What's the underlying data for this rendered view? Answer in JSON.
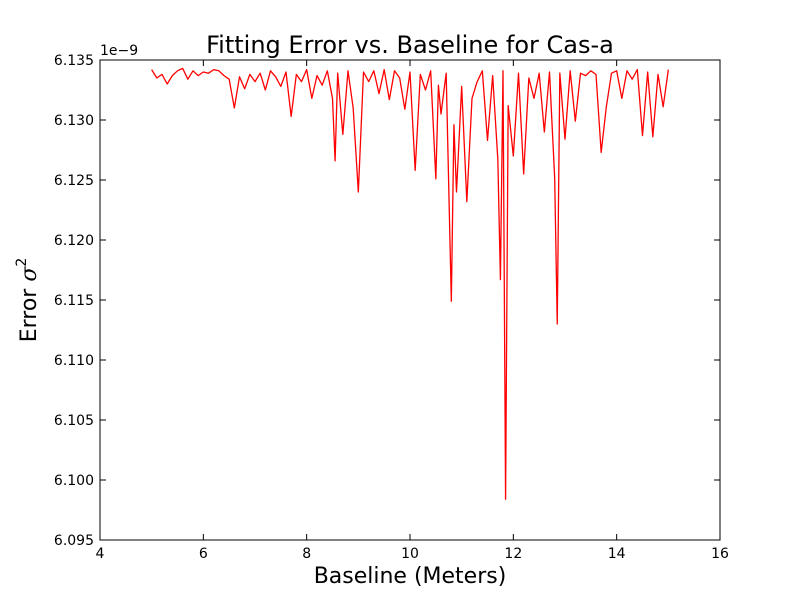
{
  "chart_data": {
    "type": "line",
    "title": "Fitting Error vs. Baseline for Cas-a",
    "xlabel": "Baseline (Meters)",
    "ylabel_base": "Error ",
    "ylabel_symbol": "σ",
    "ylabel_exponent": "2",
    "offset_text": "1e−9",
    "xlim": [
      4,
      16
    ],
    "ylim": [
      6.095,
      6.135
    ],
    "xticks": [
      4,
      6,
      8,
      10,
      12,
      14,
      16
    ],
    "xtick_labels": [
      "4",
      "6",
      "8",
      "10",
      "12",
      "14",
      "16"
    ],
    "yticks": [
      6.095,
      6.1,
      6.105,
      6.11,
      6.115,
      6.12,
      6.125,
      6.13,
      6.135
    ],
    "ytick_labels": [
      "6.095",
      "6.100",
      "6.105",
      "6.110",
      "6.115",
      "6.120",
      "6.125",
      "6.130",
      "6.135"
    ],
    "grid": false,
    "series": [
      {
        "color": "#ff0000",
        "x": [
          5.0,
          5.1,
          5.2,
          5.3,
          5.4,
          5.5,
          5.6,
          5.7,
          5.8,
          5.9,
          6.0,
          6.1,
          6.2,
          6.3,
          6.4,
          6.5,
          6.6,
          6.7,
          6.8,
          6.9,
          7.0,
          7.1,
          7.2,
          7.3,
          7.4,
          7.5,
          7.6,
          7.7,
          7.8,
          7.9,
          8.0,
          8.1,
          8.2,
          8.3,
          8.4,
          8.5,
          8.55,
          8.6,
          8.7,
          8.8,
          8.9,
          9.0,
          9.1,
          9.2,
          9.3,
          9.4,
          9.5,
          9.6,
          9.7,
          9.8,
          9.9,
          10.0,
          10.1,
          10.2,
          10.3,
          10.4,
          10.5,
          10.55,
          10.6,
          10.7,
          10.8,
          10.85,
          10.9,
          11.0,
          11.1,
          11.2,
          11.3,
          11.4,
          11.5,
          11.6,
          11.7,
          11.75,
          11.8,
          11.85,
          11.9,
          12.0,
          12.1,
          12.2,
          12.3,
          12.4,
          12.5,
          12.6,
          12.7,
          12.8,
          12.85,
          12.9,
          13.0,
          13.1,
          13.2,
          13.3,
          13.4,
          13.5,
          13.6,
          13.7,
          13.8,
          13.9,
          14.0,
          14.1,
          14.2,
          14.3,
          14.4,
          14.5,
          14.6,
          14.7,
          14.8,
          14.9,
          15.0
        ],
        "y": [
          6.1342,
          6.1335,
          6.1338,
          6.133,
          6.1337,
          6.1341,
          6.1343,
          6.1334,
          6.1341,
          6.1337,
          6.134,
          6.1339,
          6.1342,
          6.1341,
          6.1337,
          6.1334,
          6.131,
          6.1336,
          6.1326,
          6.1338,
          6.1332,
          6.1339,
          6.1325,
          6.1341,
          6.1336,
          6.1328,
          6.134,
          6.1303,
          6.1338,
          6.1332,
          6.1342,
          6.1318,
          6.1337,
          6.1329,
          6.1341,
          6.1318,
          6.1266,
          6.1339,
          6.1288,
          6.1341,
          6.131,
          6.124,
          6.134,
          6.1332,
          6.1341,
          6.1322,
          6.1342,
          6.1317,
          6.1341,
          6.1335,
          6.1309,
          6.134,
          6.1258,
          6.1338,
          6.1325,
          6.1341,
          6.1251,
          6.1329,
          6.1305,
          6.1339,
          6.1149,
          6.1296,
          6.124,
          6.1328,
          6.1232,
          6.1318,
          6.1332,
          6.1341,
          6.1283,
          6.1337,
          6.1267,
          6.1167,
          6.1341,
          6.0984,
          6.1312,
          6.127,
          6.1339,
          6.1255,
          6.1335,
          6.1318,
          6.1339,
          6.129,
          6.134,
          6.1252,
          6.113,
          6.1339,
          6.1284,
          6.1341,
          6.1299,
          6.1339,
          6.1337,
          6.1341,
          6.1338,
          6.1273,
          6.1311,
          6.1339,
          6.1341,
          6.1318,
          6.1341,
          6.1334,
          6.1342,
          6.1287,
          6.134,
          6.1286,
          6.1338,
          6.1311,
          6.1342
        ]
      }
    ]
  }
}
